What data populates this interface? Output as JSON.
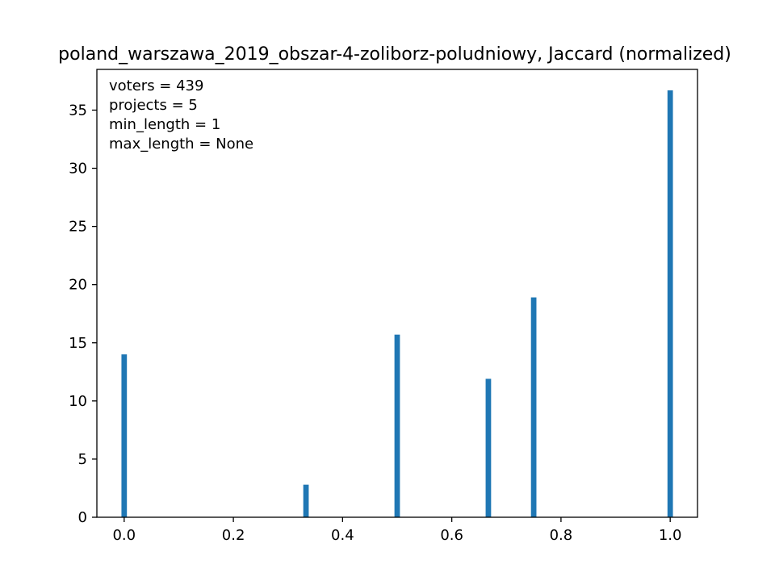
{
  "chart_data": {
    "type": "bar",
    "title": "poland_warszawa_2019_obszar-4-zoliborz-poludniowy, Jaccard (normalized)",
    "xlabel": "",
    "ylabel": "",
    "xlim": [
      -0.05,
      1.05
    ],
    "ylim": [
      0,
      38.5
    ],
    "x_ticks": [
      0.0,
      0.2,
      0.4,
      0.6,
      0.8,
      1.0
    ],
    "x_tick_labels": [
      "0.0",
      "0.2",
      "0.4",
      "0.6",
      "0.8",
      "1.0"
    ],
    "y_ticks": [
      0,
      5,
      10,
      15,
      20,
      25,
      30,
      35
    ],
    "y_tick_labels": [
      "0",
      "5",
      "10",
      "15",
      "20",
      "25",
      "30",
      "35"
    ],
    "bar_color": "#1f77b4",
    "bar_width": 0.01,
    "grid": false,
    "series": [
      {
        "x": [
          0.0,
          0.333,
          0.5,
          0.667,
          0.75,
          1.0
        ],
        "values": [
          14.0,
          2.8,
          15.7,
          11.9,
          18.9,
          36.7
        ]
      }
    ],
    "annotations": [
      "voters = 439",
      "projects = 5",
      "min_length = 1",
      "max_length = None"
    ]
  }
}
